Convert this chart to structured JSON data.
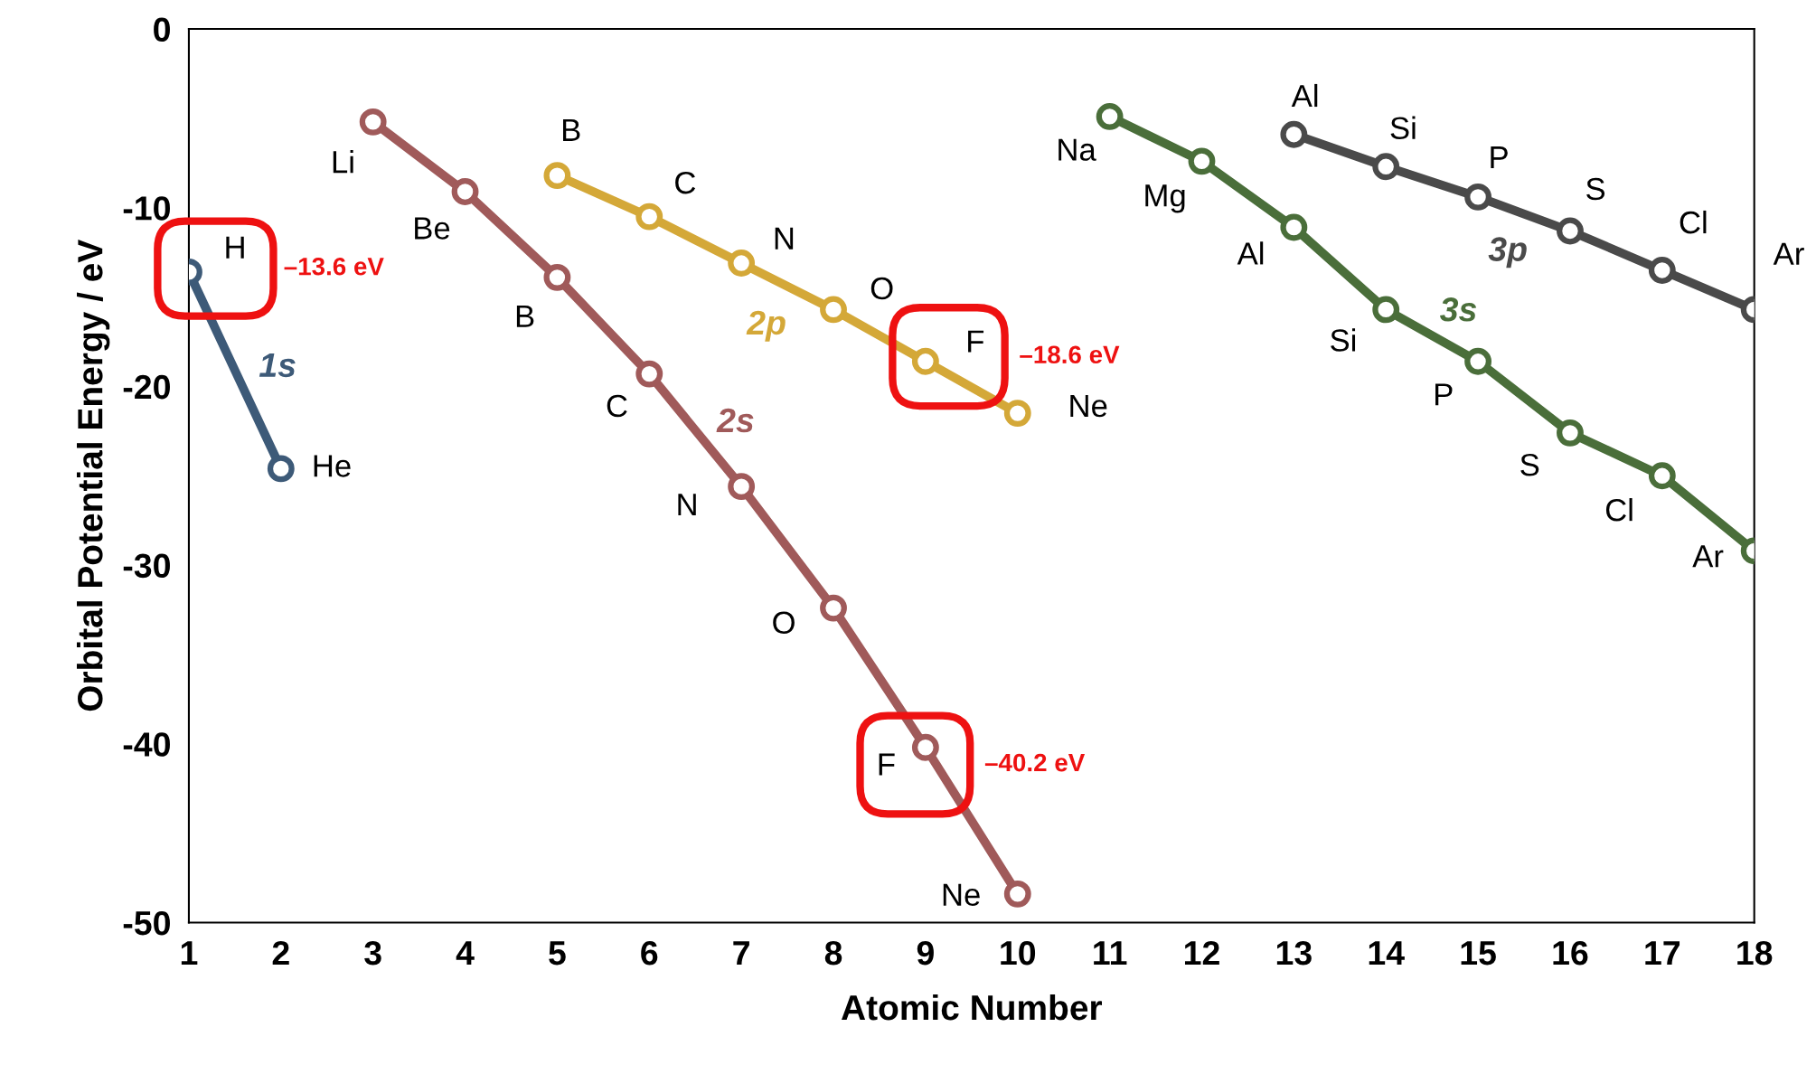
{
  "chart_data": {
    "type": "line",
    "xlabel": "Atomic Number",
    "ylabel": "Orbital Potential Energy / eV",
    "xlim": [
      1,
      18
    ],
    "xticks": [
      1,
      2,
      3,
      4,
      5,
      6,
      7,
      8,
      9,
      10,
      11,
      12,
      13,
      14,
      15,
      16,
      17,
      18
    ],
    "ylim": [
      -50,
      0
    ],
    "yticks": [
      {
        "value": -50,
        "label": "-50"
      },
      {
        "value": -40,
        "label": "-40"
      },
      {
        "value": -30,
        "label": "-30"
      },
      {
        "value": -20,
        "label": "-20"
      },
      {
        "value": -10,
        "label": "-10"
      },
      0
    ],
    "grid": false,
    "legend": false,
    "marker": "circle",
    "line_style": "solid",
    "series": [
      {
        "name": "1s",
        "color": "#3d5a78",
        "x": [
          1,
          2
        ],
        "values": [
          -13.6,
          -24.6
        ]
      },
      {
        "name": "2s",
        "color": "#a05a5a",
        "x": [
          3,
          4,
          5,
          6,
          7,
          8,
          9,
          10
        ],
        "values": [
          -5.2,
          -9.1,
          -13.9,
          -19.3,
          -25.6,
          -32.4,
          -40.2,
          -48.4
        ]
      },
      {
        "name": "2p",
        "color": "#d4a838",
        "x": [
          5,
          6,
          7,
          8,
          9,
          10
        ],
        "values": [
          -8.2,
          -10.5,
          -13.1,
          -15.7,
          -18.6,
          -21.5
        ]
      },
      {
        "name": "3s",
        "color": "#4a6e3a",
        "x": [
          11,
          12,
          13,
          14,
          15,
          16,
          17,
          18
        ],
        "values": [
          -4.9,
          -7.4,
          -11.1,
          -15.7,
          -18.6,
          -22.6,
          -25.0,
          -29.2
        ]
      },
      {
        "name": "3p",
        "color": "#4a4a4a",
        "x": [
          13,
          14,
          15,
          16,
          17,
          18
        ],
        "values": [
          -5.9,
          -7.7,
          -9.4,
          -11.3,
          -13.5,
          -15.7
        ]
      }
    ],
    "annotations": [
      {
        "text": "H",
        "x": 1,
        "y": -13.6
      },
      {
        "text": "He",
        "x": 2,
        "y": -24.6
      },
      {
        "text": "Li",
        "x": 3,
        "y": -5.2
      },
      {
        "text": "Be",
        "x": 4,
        "y": -9.1
      },
      {
        "text": "B",
        "x": 5,
        "y": -13.9
      },
      {
        "text": "C",
        "x": 6,
        "y": -19.3
      },
      {
        "text": "N",
        "x": 7,
        "y": -25.6
      },
      {
        "text": "O",
        "x": 8,
        "y": -32.4
      },
      {
        "text": "F",
        "x": 9,
        "y": -40.2
      },
      {
        "text": "Ne",
        "x": 10,
        "y": -48.4
      },
      {
        "text": "B",
        "x": 5,
        "y": -8.2
      },
      {
        "text": "C",
        "x": 6,
        "y": -10.5
      },
      {
        "text": "N",
        "x": 7,
        "y": -13.1
      },
      {
        "text": "O",
        "x": 8,
        "y": -15.7
      },
      {
        "text": "F",
        "x": 9,
        "y": -18.6
      },
      {
        "text": "Ne",
        "x": 10,
        "y": -21.5
      },
      {
        "text": "Na",
        "x": 11,
        "y": -4.9
      },
      {
        "text": "Mg",
        "x": 12,
        "y": -7.4
      },
      {
        "text": "Al",
        "x": 13,
        "y": -11.1
      },
      {
        "text": "Si",
        "x": 14,
        "y": -15.7
      },
      {
        "text": "P",
        "x": 15,
        "y": -18.6
      },
      {
        "text": "S",
        "x": 16,
        "y": -22.6
      },
      {
        "text": "Cl",
        "x": 17,
        "y": -25.0
      },
      {
        "text": "Ar",
        "x": 18,
        "y": -29.2
      },
      {
        "text": "Al",
        "x": 13,
        "y": -5.9
      },
      {
        "text": "Si",
        "x": 14,
        "y": -7.7
      },
      {
        "text": "P",
        "x": 15,
        "y": -9.4
      },
      {
        "text": "S",
        "x": 16,
        "y": -11.3
      },
      {
        "text": "Cl",
        "x": 17,
        "y": -13.5
      },
      {
        "text": "Ar",
        "x": 18,
        "y": -15.7
      },
      "–13.6 eV",
      "–18.6 eV",
      "–40.2 eV"
    ]
  }
}
